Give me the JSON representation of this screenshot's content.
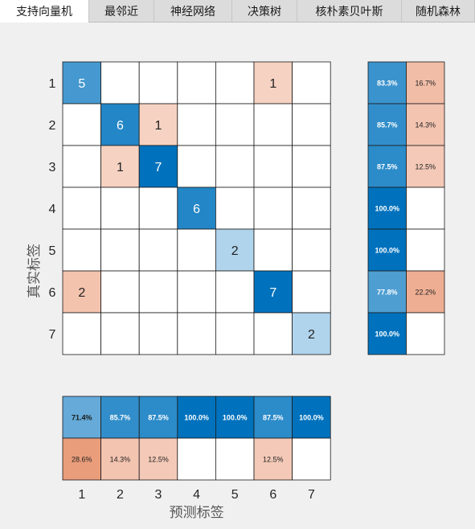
{
  "tabs": [
    {
      "label": "支持向量机",
      "active": true
    },
    {
      "label": "最邻近",
      "active": false
    },
    {
      "label": "神经网络",
      "active": false
    },
    {
      "label": "决策树",
      "active": false
    },
    {
      "label": "核朴素贝叶斯",
      "active": false
    },
    {
      "label": "随机森林",
      "active": false
    }
  ],
  "chart_data": {
    "type": "heatmap",
    "title": "",
    "xlabel": "预测标签",
    "ylabel": "真实标签",
    "classes": [
      "1",
      "2",
      "3",
      "4",
      "5",
      "6",
      "7"
    ],
    "matrix": [
      [
        5,
        0,
        0,
        0,
        0,
        1,
        0
      ],
      [
        0,
        6,
        1,
        0,
        0,
        0,
        0
      ],
      [
        0,
        1,
        7,
        0,
        0,
        0,
        0
      ],
      [
        0,
        0,
        0,
        6,
        0,
        0,
        0
      ],
      [
        0,
        0,
        0,
        0,
        2,
        0,
        0
      ],
      [
        2,
        0,
        0,
        0,
        0,
        7,
        0
      ],
      [
        0,
        0,
        0,
        0,
        0,
        0,
        2
      ]
    ],
    "row_summary": {
      "correct": [
        "83.3%",
        "85.7%",
        "87.5%",
        "100.0%",
        "100.0%",
        "77.8%",
        "100.0%"
      ],
      "incorrect": [
        "16.7%",
        "14.3%",
        "12.5%",
        "",
        "",
        "22.2%",
        ""
      ]
    },
    "column_summary": {
      "correct": [
        "71.4%",
        "85.7%",
        "87.5%",
        "100.0%",
        "100.0%",
        "87.5%",
        "100.0%"
      ],
      "incorrect": [
        "28.6%",
        "14.3%",
        "12.5%",
        "",
        "",
        "12.5%",
        ""
      ]
    },
    "colors": {
      "correct_max": "#0072bd",
      "correct_min": "#b0d4ec",
      "incorrect_max": "#d95319",
      "incorrect_light": "#f8ddd2",
      "empty": "#ffffff",
      "grid": "#1a1a1a"
    }
  }
}
